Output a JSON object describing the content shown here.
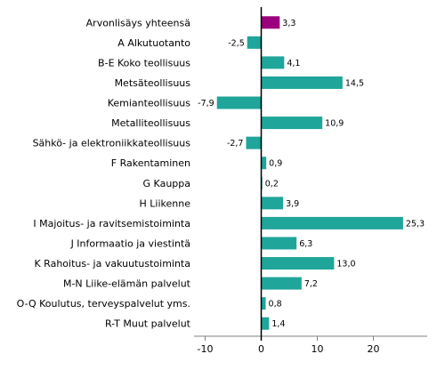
{
  "chart_data": {
    "type": "bar",
    "orientation": "horizontal",
    "title": "",
    "xlabel": "",
    "ylabel": "",
    "xlim": [
      -12,
      30
    ],
    "xticks": [
      -10,
      0,
      10,
      20
    ],
    "xtick_labels": [
      "-10",
      "0",
      "10",
      "20"
    ],
    "grid": false,
    "legend": "none",
    "categories": [
      "Arvonlisäys yhteensä",
      "A Alkutuotanto",
      "B-E Koko teollisuus",
      "Metsäteollisuus",
      "Kemianteollisuus",
      "Metalliteollisuus",
      "Sähkö- ja elektroniikkateollisuus",
      "F Rakentaminen",
      "G Kauppa",
      "H Liikenne",
      "I Majoitus- ja ravitsemistoiminta",
      "J Informaatio ja viestintä",
      "K Rahoitus- ja vakuutustoiminta",
      "M-N Liike-elämän palvelut",
      "O-Q Koulutus, terveyspalvelut yms.",
      "R-T Muut palvelut"
    ],
    "values": [
      3.3,
      -2.5,
      4.1,
      14.5,
      -7.9,
      10.9,
      -2.7,
      0.9,
      0.2,
      3.9,
      25.3,
      6.3,
      13.0,
      7.2,
      0.8,
      1.4
    ],
    "value_labels": [
      "3,3",
      "-2,5",
      "4,1",
      "14,5",
      "-7,9",
      "10,9",
      "-2,7",
      "0,9",
      "0,2",
      "3,9",
      "25,3",
      "6,3",
      "13,0",
      "7,2",
      "0,8",
      "1,4"
    ],
    "colors": {
      "highlight": "#9b007c",
      "default": "#20a59a",
      "axis": "#000000",
      "tick": "#808080"
    },
    "highlight_index": 0
  }
}
